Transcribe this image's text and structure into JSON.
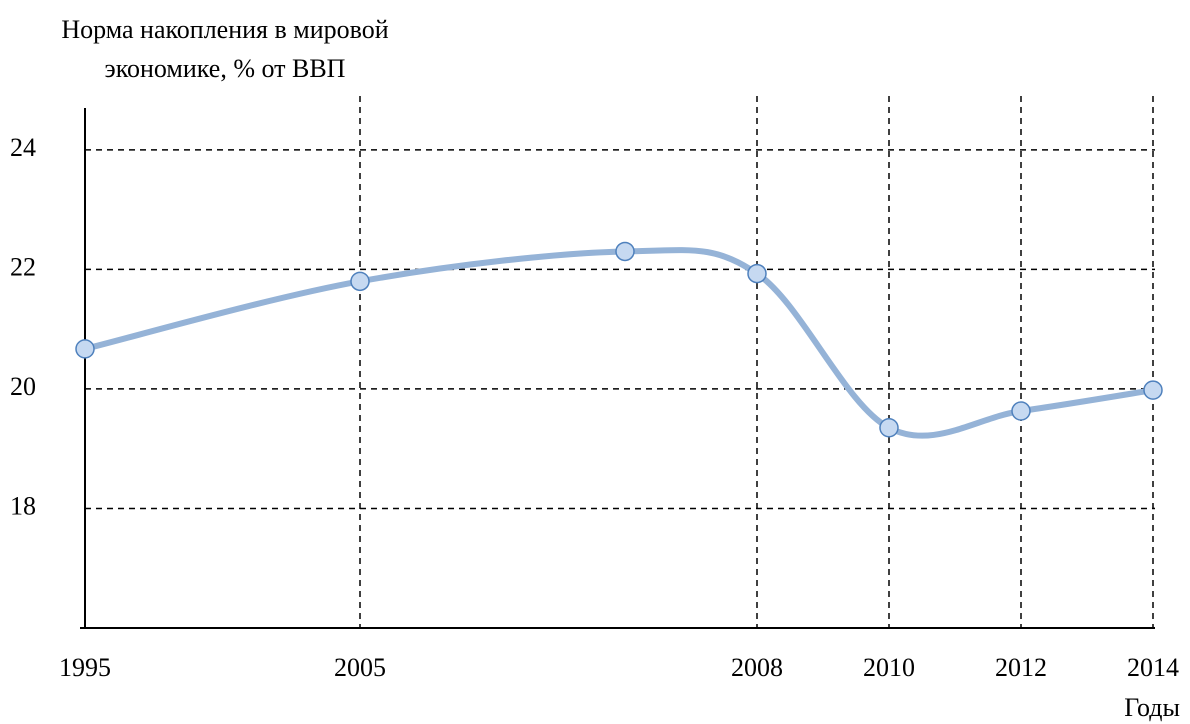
{
  "chart_data": {
    "type": "line",
    "title": [
      "Норма накопления в мировой",
      "экономике, % от ВВП"
    ],
    "x_label": "Годы",
    "categories": [
      "1995",
      "2005",
      null,
      "2008",
      "2010",
      "2012",
      "2014"
    ],
    "series": [
      {
        "color": "#95b3d7",
        "marker_color": "#4f81bd",
        "values": [
          20.67,
          21.8,
          22.3,
          21.93,
          19.35,
          19.63,
          19.98
        ]
      }
    ],
    "ylim": [
      16,
      24.7
    ],
    "yticks": [
      18,
      20,
      22,
      24
    ],
    "grid": true,
    "smooth": true
  }
}
